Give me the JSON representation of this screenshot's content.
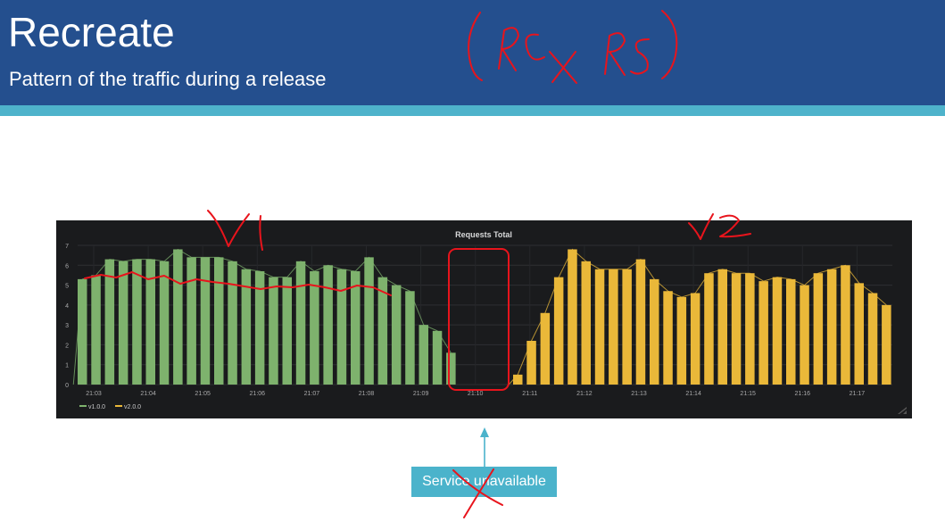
{
  "slide": {
    "title": "Recreate",
    "subtitle": "Pattern of the traffic during a release",
    "callout": "Service unavailable",
    "colors": {
      "header": "#244f8e",
      "accent_bar": "#4eb3cb",
      "callout": "#4bb3cb",
      "ink": "#e8141c"
    }
  },
  "chart_data": {
    "type": "bar",
    "title": "Requests Total",
    "xlabel": "",
    "ylabel": "",
    "ylim": [
      0,
      7
    ],
    "yticks": [
      "0",
      "1",
      "2",
      "3",
      "4",
      "5",
      "6",
      "7"
    ],
    "xlabels": [
      "21:03",
      "21:04",
      "21:05",
      "21:06",
      "21:07",
      "21:08",
      "21:09",
      "21:10",
      "21:11",
      "21:12",
      "21:13",
      "21:14",
      "21:15",
      "21:16",
      "21:17"
    ],
    "grid": true,
    "legend_placement": "bottom-left",
    "series": [
      {
        "name": "v1.0.0",
        "color": "#7eb26d",
        "values": [
          5.3,
          5.5,
          6.3,
          6.2,
          6.3,
          6.3,
          6.2,
          6.8,
          6.4,
          6.4,
          6.4,
          6.2,
          5.8,
          5.7,
          5.4,
          5.4,
          6.2,
          5.7,
          6.0,
          5.8,
          5.7,
          6.4,
          5.4,
          5.0,
          4.7,
          3.0,
          2.7,
          1.6
        ]
      },
      {
        "name": "v2.0.0",
        "color": "#eab839",
        "values": [
          0.5,
          2.2,
          3.6,
          5.4,
          6.8,
          6.2,
          5.8,
          5.8,
          5.8,
          6.3,
          5.3,
          4.7,
          4.4,
          4.6,
          5.6,
          5.8,
          5.6,
          5.6,
          5.2,
          5.4,
          5.3,
          5.0,
          5.6,
          5.8,
          6.0,
          5.1,
          4.6,
          4.0
        ]
      }
    ]
  }
}
